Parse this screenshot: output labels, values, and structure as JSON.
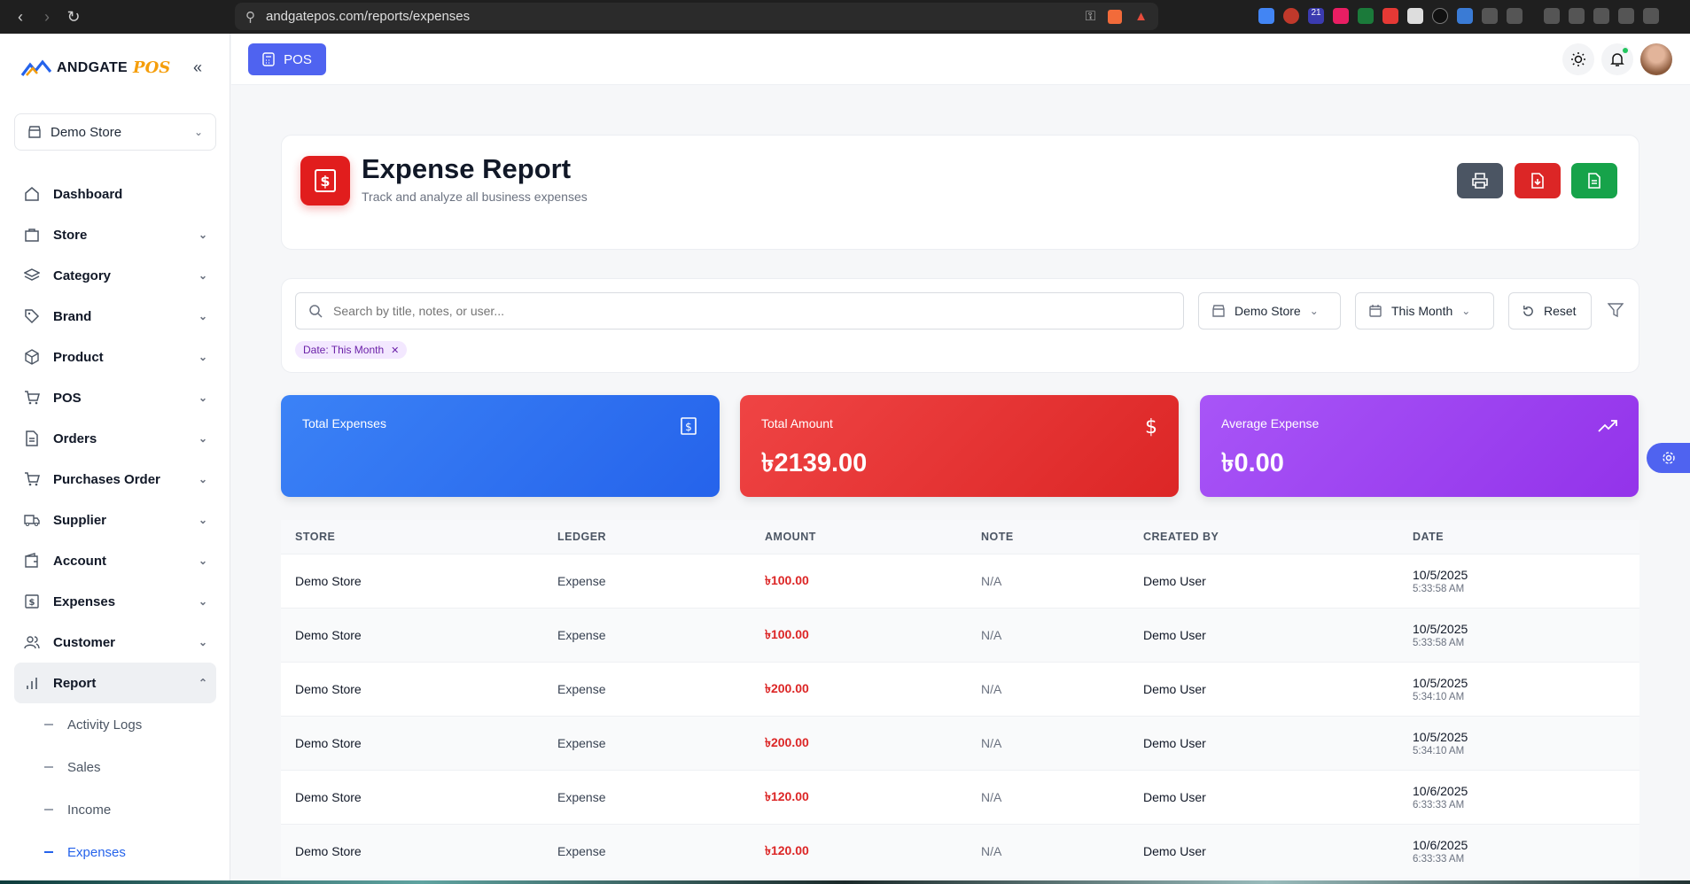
{
  "browser": {
    "url": "andgatepos.com/reports/expenses",
    "badge_count": "21"
  },
  "app": {
    "logo_word": "ANDGATE",
    "logo_pos": "POS",
    "store_selector": "Demo Store",
    "pos_button": "POS"
  },
  "sidebar": {
    "items": [
      {
        "label": "Dashboard",
        "icon": "home-icon"
      },
      {
        "label": "Store",
        "icon": "store-icon"
      },
      {
        "label": "Category",
        "icon": "layers-icon"
      },
      {
        "label": "Brand",
        "icon": "tag-icon"
      },
      {
        "label": "Product",
        "icon": "box-icon"
      },
      {
        "label": "POS",
        "icon": "cart-icon"
      },
      {
        "label": "Orders",
        "icon": "document-icon"
      },
      {
        "label": "Purchases Order",
        "icon": "cart-icon"
      },
      {
        "label": "Supplier",
        "icon": "truck-icon"
      },
      {
        "label": "Account",
        "icon": "wallet-icon"
      },
      {
        "label": "Expenses",
        "icon": "receipt-icon"
      },
      {
        "label": "Customer",
        "icon": "users-icon"
      },
      {
        "label": "Report",
        "icon": "chart-icon"
      }
    ],
    "report_sub": [
      "Activity Logs",
      "Sales",
      "Income",
      "Expenses"
    ]
  },
  "header": {
    "title": "Expense Report",
    "subtitle": "Track and analyze all business expenses"
  },
  "filters": {
    "search_placeholder": "Search by title, notes, or user...",
    "store": "Demo Store",
    "period": "This Month",
    "reset": "Reset",
    "chip": "Date: This Month"
  },
  "stats": [
    {
      "label": "Total Expenses",
      "value": ""
    },
    {
      "label": "Total Amount",
      "value": "৳2139.00"
    },
    {
      "label": "Average Expense",
      "value": "৳0.00"
    }
  ],
  "table": {
    "headers": [
      "STORE",
      "LEDGER",
      "AMOUNT",
      "NOTE",
      "CREATED BY",
      "DATE"
    ],
    "rows": [
      {
        "store": "Demo Store",
        "ledger": "Expense",
        "amount": "৳100.00",
        "note": "N/A",
        "user": "Demo User",
        "date": "10/5/2025",
        "time": "5:33:58 AM"
      },
      {
        "store": "Demo Store",
        "ledger": "Expense",
        "amount": "৳100.00",
        "note": "N/A",
        "user": "Demo User",
        "date": "10/5/2025",
        "time": "5:33:58 AM"
      },
      {
        "store": "Demo Store",
        "ledger": "Expense",
        "amount": "৳200.00",
        "note": "N/A",
        "user": "Demo User",
        "date": "10/5/2025",
        "time": "5:34:10 AM"
      },
      {
        "store": "Demo Store",
        "ledger": "Expense",
        "amount": "৳200.00",
        "note": "N/A",
        "user": "Demo User",
        "date": "10/5/2025",
        "time": "5:34:10 AM"
      },
      {
        "store": "Demo Store",
        "ledger": "Expense",
        "amount": "৳120.00",
        "note": "N/A",
        "user": "Demo User",
        "date": "10/6/2025",
        "time": "6:33:33 AM"
      },
      {
        "store": "Demo Store",
        "ledger": "Expense",
        "amount": "৳120.00",
        "note": "N/A",
        "user": "Demo User",
        "date": "10/6/2025",
        "time": "6:33:33 AM"
      }
    ]
  },
  "colors": {
    "primary": "#4f63f0",
    "red": "#dc2626",
    "green": "#16a34a",
    "blue": "#2563eb",
    "purple": "#9333ea",
    "dark": "#4b5563"
  }
}
